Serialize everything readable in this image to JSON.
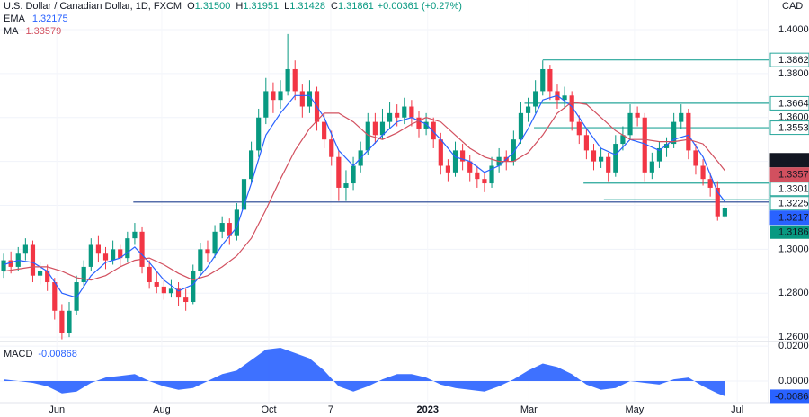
{
  "chart_data": {
    "type": "candlestick",
    "header": {
      "title": "U.S. Dollar / Canadian Dollar, 1D, FXCM",
      "fields": [
        {
          "label": "O",
          "value": "1.31500"
        },
        {
          "label": "H",
          "value": "1.31951"
        },
        {
          "label": "L",
          "value": "1.31428"
        },
        {
          "label": "C",
          "value": "1.31861"
        }
      ],
      "change": "+0.00361 (+0.27%)"
    },
    "currency": "CAD",
    "up_color": "#089981",
    "down_color": "#f23645",
    "candles": [
      [
        1.29,
        1.298,
        1.287,
        1.295
      ],
      [
        1.295,
        1.299,
        1.289,
        1.292
      ],
      [
        1.292,
        1.301,
        1.29,
        1.298
      ],
      [
        1.298,
        1.305,
        1.295,
        1.302
      ],
      [
        1.302,
        1.304,
        1.285,
        1.288
      ],
      [
        1.288,
        1.294,
        1.284,
        1.29
      ],
      [
        1.29,
        1.293,
        1.281,
        1.285
      ],
      [
        1.285,
        1.287,
        1.268,
        1.272
      ],
      [
        1.272,
        1.275,
        1.259,
        1.262
      ],
      [
        1.262,
        1.276,
        1.26,
        1.272
      ],
      [
        1.272,
        1.288,
        1.27,
        1.285
      ],
      [
        1.285,
        1.295,
        1.282,
        1.292
      ],
      [
        1.292,
        1.305,
        1.29,
        1.302
      ],
      [
        1.302,
        1.306,
        1.294,
        1.298
      ],
      [
        1.298,
        1.301,
        1.291,
        1.295
      ],
      [
        1.295,
        1.304,
        1.293,
        1.3
      ],
      [
        1.3,
        1.302,
        1.292,
        1.296
      ],
      [
        1.296,
        1.308,
        1.294,
        1.305
      ],
      [
        1.305,
        1.312,
        1.302,
        1.308
      ],
      [
        1.308,
        1.31,
        1.289,
        1.292
      ],
      [
        1.292,
        1.295,
        1.282,
        1.285
      ],
      [
        1.285,
        1.29,
        1.28,
        1.283
      ],
      [
        1.283,
        1.287,
        1.277,
        1.28
      ],
      [
        1.28,
        1.286,
        1.278,
        1.282
      ],
      [
        1.282,
        1.285,
        1.274,
        1.278
      ],
      [
        1.278,
        1.282,
        1.272,
        1.276
      ],
      [
        1.276,
        1.293,
        1.275,
        1.29
      ],
      [
        1.29,
        1.303,
        1.288,
        1.3
      ],
      [
        1.3,
        1.304,
        1.294,
        1.298
      ],
      [
        1.298,
        1.311,
        1.296,
        1.308
      ],
      [
        1.308,
        1.315,
        1.305,
        1.312
      ],
      [
        1.312,
        1.314,
        1.302,
        1.306
      ],
      [
        1.306,
        1.321,
        1.304,
        1.318
      ],
      [
        1.318,
        1.335,
        1.316,
        1.332
      ],
      [
        1.332,
        1.349,
        1.33,
        1.345
      ],
      [
        1.345,
        1.364,
        1.342,
        1.36
      ],
      [
        1.36,
        1.378,
        1.357,
        1.372
      ],
      [
        1.372,
        1.376,
        1.362,
        1.368
      ],
      [
        1.368,
        1.377,
        1.364,
        1.372
      ],
      [
        1.372,
        1.398,
        1.37,
        1.382
      ],
      [
        1.382,
        1.386,
        1.368,
        1.372
      ],
      [
        1.372,
        1.375,
        1.36,
        1.365
      ],
      [
        1.365,
        1.377,
        1.362,
        1.372
      ],
      [
        1.372,
        1.374,
        1.354,
        1.358
      ],
      [
        1.358,
        1.362,
        1.346,
        1.35
      ],
      [
        1.35,
        1.354,
        1.338,
        1.342
      ],
      [
        1.342,
        1.345,
        1.322,
        1.328
      ],
      [
        1.328,
        1.336,
        1.322,
        1.33
      ],
      [
        1.33,
        1.342,
        1.327,
        1.338
      ],
      [
        1.338,
        1.349,
        1.335,
        1.345
      ],
      [
        1.345,
        1.362,
        1.343,
        1.358
      ],
      [
        1.358,
        1.362,
        1.348,
        1.352
      ],
      [
        1.352,
        1.364,
        1.35,
        1.358
      ],
      [
        1.358,
        1.367,
        1.355,
        1.362
      ],
      [
        1.362,
        1.366,
        1.356,
        1.36
      ],
      [
        1.36,
        1.369,
        1.357,
        1.365
      ],
      [
        1.365,
        1.368,
        1.356,
        1.36
      ],
      [
        1.36,
        1.363,
        1.351,
        1.355
      ],
      [
        1.355,
        1.362,
        1.352,
        1.358
      ],
      [
        1.358,
        1.36,
        1.346,
        1.35
      ],
      [
        1.35,
        1.353,
        1.334,
        1.338
      ],
      [
        1.338,
        1.341,
        1.331,
        1.335
      ],
      [
        1.335,
        1.349,
        1.333,
        1.345
      ],
      [
        1.345,
        1.348,
        1.336,
        1.34
      ],
      [
        1.34,
        1.343,
        1.331,
        1.335
      ],
      [
        1.335,
        1.338,
        1.328,
        1.332
      ],
      [
        1.332,
        1.335,
        1.326,
        1.33
      ],
      [
        1.33,
        1.342,
        1.328,
        1.338
      ],
      [
        1.338,
        1.346,
        1.335,
        1.342
      ],
      [
        1.342,
        1.345,
        1.336,
        1.34
      ],
      [
        1.34,
        1.354,
        1.338,
        1.35
      ],
      [
        1.35,
        1.367,
        1.348,
        1.362
      ],
      [
        1.362,
        1.369,
        1.358,
        1.365
      ],
      [
        1.365,
        1.377,
        1.362,
        1.372
      ],
      [
        1.372,
        1.386,
        1.37,
        1.382
      ],
      [
        1.382,
        1.384,
        1.368,
        1.372
      ],
      [
        1.372,
        1.375,
        1.364,
        1.368
      ],
      [
        1.368,
        1.374,
        1.364,
        1.37
      ],
      [
        1.37,
        1.372,
        1.354,
        1.358
      ],
      [
        1.358,
        1.361,
        1.348,
        1.352
      ],
      [
        1.352,
        1.355,
        1.341,
        1.345
      ],
      [
        1.345,
        1.348,
        1.336,
        1.34
      ],
      [
        1.34,
        1.346,
        1.337,
        1.342
      ],
      [
        1.342,
        1.344,
        1.331,
        1.335
      ],
      [
        1.335,
        1.352,
        1.333,
        1.348
      ],
      [
        1.348,
        1.356,
        1.345,
        1.352
      ],
      [
        1.352,
        1.366,
        1.35,
        1.362
      ],
      [
        1.362,
        1.365,
        1.356,
        1.36
      ],
      [
        1.36,
        1.362,
        1.331,
        1.335
      ],
      [
        1.335,
        1.344,
        1.332,
        1.34
      ],
      [
        1.34,
        1.349,
        1.337,
        1.346
      ],
      [
        1.346,
        1.351,
        1.342,
        1.348
      ],
      [
        1.348,
        1.362,
        1.346,
        1.358
      ],
      [
        1.358,
        1.366,
        1.355,
        1.362
      ],
      [
        1.362,
        1.364,
        1.341,
        1.345
      ],
      [
        1.345,
        1.348,
        1.334,
        1.338
      ],
      [
        1.338,
        1.341,
        1.329,
        1.332
      ],
      [
        1.332,
        1.335,
        1.324,
        1.328
      ],
      [
        1.328,
        1.331,
        1.313,
        1.315
      ],
      [
        1.315,
        1.31951,
        1.31428,
        1.31861
      ]
    ],
    "line_x": [
      0,
      2,
      4,
      6,
      8,
      10,
      12,
      14,
      16,
      18,
      20,
      22,
      24,
      26,
      28,
      30,
      32,
      34,
      36,
      38,
      40,
      42,
      44,
      46,
      48,
      50,
      52,
      54,
      56,
      58,
      60,
      62,
      64,
      66,
      68,
      70,
      72,
      74,
      76,
      78,
      80,
      82,
      84,
      86,
      88,
      90,
      92,
      94,
      96,
      98,
      99
    ],
    "series": [
      {
        "name": "EMA",
        "color": "#2962ff",
        "values": [
          1.293,
          1.295,
          1.294,
          1.29,
          1.28,
          1.278,
          1.288,
          1.294,
          1.296,
          1.301,
          1.294,
          1.286,
          1.281,
          1.284,
          1.292,
          1.302,
          1.31,
          1.33,
          1.352,
          1.362,
          1.37,
          1.37,
          1.36,
          1.345,
          1.338,
          1.345,
          1.352,
          1.358,
          1.36,
          1.357,
          1.35,
          1.342,
          1.34,
          1.335,
          1.338,
          1.344,
          1.355,
          1.368,
          1.37,
          1.365,
          1.355,
          1.346,
          1.343,
          1.35,
          1.348,
          1.345,
          1.35,
          1.352,
          1.342,
          1.326,
          1.32175
        ]
      },
      {
        "name": "MA",
        "color": "#d2505f",
        "values": [
          1.29,
          1.291,
          1.292,
          1.292,
          1.29,
          1.287,
          1.286,
          1.288,
          1.292,
          1.295,
          1.296,
          1.293,
          1.289,
          1.286,
          1.288,
          1.292,
          1.297,
          1.305,
          1.318,
          1.332,
          1.345,
          1.355,
          1.362,
          1.362,
          1.358,
          1.352,
          1.35,
          1.353,
          1.357,
          1.36,
          1.358,
          1.352,
          1.346,
          1.342,
          1.34,
          1.34,
          1.344,
          1.352,
          1.362,
          1.367,
          1.366,
          1.36,
          1.354,
          1.35,
          1.35,
          1.349,
          1.349,
          1.35,
          1.348,
          1.34,
          1.33579
        ]
      }
    ],
    "levels": [
      {
        "value": 1.38622,
        "x0": 74,
        "color": "#26a69a",
        "badge": true
      },
      {
        "value": 1.36648,
        "x0": 71.5,
        "color": "#26a69a",
        "badge": true
      },
      {
        "value": 1.35536,
        "x0": 72.8,
        "color": "#26a69a",
        "badge": true
      },
      {
        "value": 1.33013,
        "x0": 79.6,
        "color": "#26a69a",
        "badge": true
      },
      {
        "value": 1.32256,
        "x0": 82.4,
        "color": "#26a69a",
        "badge": true
      },
      {
        "value": 1.3215,
        "x0": 17.8,
        "color": "#1e3f8f",
        "badge": false
      }
    ],
    "marker": {
      "value": 1.34056,
      "color": "#131722"
    },
    "xlim": [
      -0.5,
      105
    ],
    "xticks": [
      {
        "value": 7.3,
        "label": "Jun"
      },
      {
        "value": 21.7,
        "label": "Aug"
      },
      {
        "value": 36.4,
        "label": "Oct"
      },
      {
        "value": 44.9,
        "label": "7"
      },
      {
        "value": 58.2,
        "label": "2023"
      },
      {
        "value": 72.1,
        "label": "Mar"
      },
      {
        "value": 86.6,
        "label": "May"
      },
      {
        "value": 100.7,
        "label": "Jul"
      }
    ],
    "ylim": [
      1.258,
      1.4135
    ],
    "yticks": [
      {
        "value": 1.26,
        "label": "1.26000"
      },
      {
        "value": 1.28,
        "label": "1.28000"
      },
      {
        "value": 1.3,
        "label": "1.30000"
      },
      {
        "value": 1.32,
        "label": "1.32000"
      },
      {
        "value": 1.34,
        "label": "1.34000"
      },
      {
        "value": 1.36,
        "label": "1.36000"
      },
      {
        "value": 1.38,
        "label": "1.38000"
      },
      {
        "value": 1.4,
        "label": "1.40000"
      }
    ],
    "macd": {
      "name": "MACD",
      "color": "#2962ff",
      "values": [
        0.001,
        0.0,
        -0.001,
        -0.003,
        -0.007,
        -0.006,
        -0.001,
        0.002,
        0.003,
        0.004,
        0.0,
        -0.003,
        -0.005,
        -0.004,
        0.0,
        0.004,
        0.006,
        0.012,
        0.018,
        0.019,
        0.016,
        0.013,
        0.006,
        -0.003,
        -0.006,
        -0.003,
        0.001,
        0.004,
        0.004,
        0.002,
        -0.002,
        -0.004,
        -0.005,
        -0.006,
        -0.003,
        0.001,
        0.006,
        0.01,
        0.008,
        0.004,
        -0.002,
        -0.005,
        -0.004,
        0.0,
        -0.001,
        -0.002,
        0.001,
        0.002,
        -0.003,
        -0.007,
        -0.00868
      ],
      "ylim": [
        -0.0118,
        0.0226
      ],
      "yticks": [
        {
          "value": 0.02,
          "label": "0.02000"
        },
        {
          "value": 0,
          "label": "0.00000"
        }
      ]
    }
  }
}
